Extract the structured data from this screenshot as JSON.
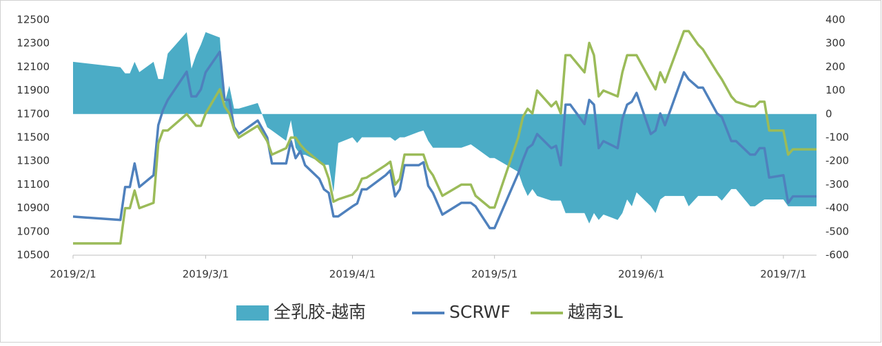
{
  "chart_data": {
    "type": "line",
    "x": [
      "2019/2/1",
      "2019/2/11",
      "2019/2/12",
      "2019/2/13",
      "2019/2/14",
      "2019/2/15",
      "2019/2/18",
      "2019/2/19",
      "2019/2/20",
      "2019/2/21",
      "2019/2/25",
      "2019/2/26",
      "2019/2/27",
      "2019/2/28",
      "2019/3/1",
      "2019/3/4",
      "2019/3/5",
      "2019/3/6",
      "2019/3/7",
      "2019/3/8",
      "2019/3/12",
      "2019/3/14",
      "2019/3/15",
      "2019/3/18",
      "2019/3/19",
      "2019/3/20",
      "2019/3/21",
      "2019/3/22",
      "2019/3/25",
      "2019/3/26",
      "2019/3/27",
      "2019/3/28",
      "2019/3/29",
      "2019/4/1",
      "2019/4/2",
      "2019/4/3",
      "2019/4/4",
      "2019/4/8",
      "2019/4/9",
      "2019/4/10",
      "2019/4/11",
      "2019/4/12",
      "2019/4/15",
      "2019/4/16",
      "2019/4/17",
      "2019/4/18",
      "2019/4/20",
      "2019/4/24",
      "2019/4/26",
      "2019/4/27",
      "2019/4/30",
      "2019/5/1",
      "2019/5/6",
      "2019/5/7",
      "2019/5/8",
      "2019/5/9",
      "2019/5/10",
      "2019/5/13",
      "2019/5/14",
      "2019/5/15",
      "2019/5/16",
      "2019/5/17",
      "2019/5/20",
      "2019/5/21",
      "2019/5/22",
      "2019/5/23",
      "2019/5/24",
      "2019/5/27",
      "2019/5/28",
      "2019/5/29",
      "2019/5/30",
      "2019/5/31",
      "2019/6/3",
      "2019/6/4",
      "2019/6/5",
      "2019/6/6",
      "2019/6/10",
      "2019/6/11",
      "2019/6/13",
      "2019/6/14",
      "2019/6/17",
      "2019/6/18",
      "2019/6/20",
      "2019/6/21",
      "2019/6/24",
      "2019/6/25",
      "2019/6/26",
      "2019/6/27",
      "2019/6/28",
      "2019/7/1",
      "2019/7/2",
      "2019/7/3",
      "2019/7/8"
    ],
    "series": [
      {
        "name": "全乳胶-越南",
        "type": "area",
        "axis": "y2",
        "color": "#4bacc6",
        "values": [
          222,
          199,
          173,
          173,
          222,
          178,
          222,
          149,
          149,
          257,
          348,
          193,
          251,
          295,
          348,
          325,
          47,
          120,
          23,
          23,
          47,
          -56,
          -70,
          -114,
          -26,
          -143,
          -173,
          -173,
          -202,
          -216,
          -216,
          -333,
          -123,
          -99,
          -123,
          -99,
          -99,
          -99,
          -99,
          -114,
          -99,
          -99,
          -76,
          -70,
          -114,
          -143,
          -143,
          -143,
          -129,
          -143,
          -187,
          -187,
          -246,
          -304,
          -348,
          -319,
          -348,
          -368,
          -368,
          -368,
          -421,
          -421,
          -421,
          -465,
          -421,
          -450,
          -427,
          -450,
          -421,
          -363,
          -392,
          -333,
          -392,
          -421,
          -363,
          -348,
          -348,
          -392,
          -348,
          -348,
          -348,
          -368,
          -319,
          -319,
          -392,
          -392,
          -377,
          -363,
          -363,
          -363,
          -392,
          -392,
          -392
        ]
      },
      {
        "name": "SCRWF",
        "color": "#4f81bd",
        "values": [
          10828,
          10800,
          11080,
          11080,
          11280,
          11080,
          11180,
          11605,
          11735,
          11820,
          12060,
          11850,
          11850,
          11910,
          12055,
          12230,
          11820,
          11820,
          11590,
          11530,
          11645,
          11500,
          11280,
          11280,
          11470,
          11325,
          11385,
          11265,
          11150,
          11060,
          11030,
          10830,
          10830,
          10915,
          10940,
          11060,
          11060,
          11180,
          11220,
          11000,
          11060,
          11265,
          11265,
          11290,
          11090,
          11030,
          10845,
          10945,
          10945,
          10915,
          10730,
          10730,
          11195,
          11310,
          11410,
          11440,
          11530,
          11410,
          11430,
          11265,
          11780,
          11780,
          11615,
          11820,
          11780,
          11410,
          11470,
          11410,
          11660,
          11780,
          11805,
          11880,
          11530,
          11560,
          11705,
          11605,
          12055,
          11995,
          11925,
          11925,
          11705,
          11675,
          11470,
          11470,
          11355,
          11355,
          11410,
          11410,
          11160,
          11180,
          10945,
          11000,
          11000
        ]
      },
      {
        "name": "越南3L",
        "color": "#9bbb59",
        "values": [
          10600,
          10600,
          10900,
          10900,
          11050,
          10900,
          10945,
          11450,
          11560,
          11560,
          11700,
          11650,
          11600,
          11600,
          11705,
          11910,
          11765,
          11705,
          11570,
          11500,
          11600,
          11470,
          11355,
          11410,
          11500,
          11500,
          11440,
          11395,
          11295,
          11265,
          11150,
          10955,
          10975,
          11015,
          11060,
          11150,
          11160,
          11265,
          11295,
          11100,
          11150,
          11355,
          11355,
          11355,
          11235,
          11180,
          11005,
          11100,
          11100,
          11005,
          10905,
          10905,
          11500,
          11675,
          11745,
          11705,
          11900,
          11765,
          11805,
          11705,
          12200,
          12200,
          12055,
          12305,
          12200,
          11850,
          11900,
          11850,
          12055,
          12200,
          12200,
          12200,
          11980,
          11910,
          12055,
          11970,
          12405,
          12405,
          12290,
          12250,
          12055,
          11995,
          11850,
          11805,
          11765,
          11765,
          11805,
          11805,
          11560,
          11560,
          11355,
          11400,
          11400
        ]
      }
    ],
    "xlim": [
      "2019/2/1",
      "2019/7/8"
    ],
    "xticks": [
      "2019/2/1",
      "2019/3/1",
      "2019/4/1",
      "2019/5/1",
      "2019/6/1",
      "2019/7/1"
    ],
    "ylim": [
      10500,
      12500
    ],
    "yticks": [
      10500,
      10700,
      10900,
      11100,
      11300,
      11500,
      11700,
      11900,
      12100,
      12300,
      12500
    ],
    "y2lim": [
      -600,
      400
    ],
    "y2ticks": [
      -600,
      -500,
      -400,
      -300,
      -200,
      -100,
      0,
      100,
      200,
      300,
      400
    ],
    "legend": "bottom"
  }
}
